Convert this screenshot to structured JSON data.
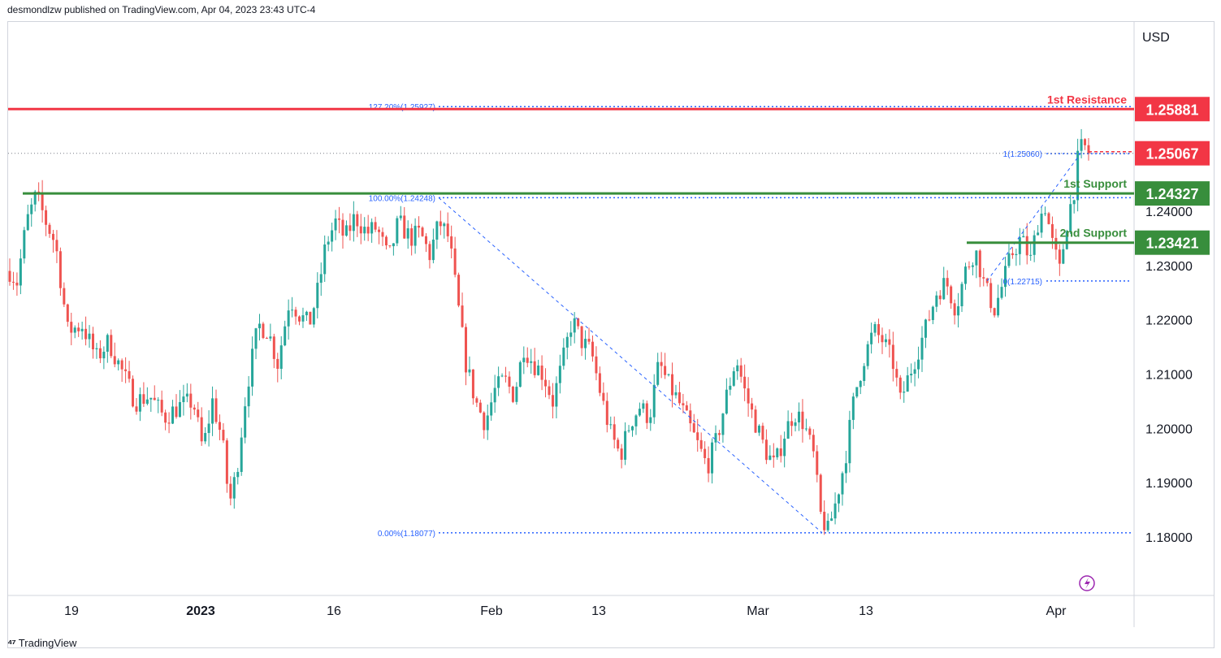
{
  "header": {
    "published_text": "desmondlzw published on TradingView.com, Apr 04, 2023 23:43 UTC-4"
  },
  "footer": {
    "brand": "TradingView"
  },
  "colors": {
    "bull": "#26a69a",
    "bear": "#ef5350",
    "resistance": "#f23645",
    "support": "#388e3c",
    "fib": "#2962ff",
    "last_price": "#f23645"
  },
  "chart_data": {
    "type": "candlestick",
    "title": "",
    "currency_label": "USD",
    "ylim": [
      1.17,
      1.275
    ],
    "y_ticks": [
      "1.18000",
      "1.19000",
      "1.20000",
      "1.21000",
      "1.22000",
      "1.23000",
      "1.24000"
    ],
    "x_ticks": [
      "19",
      "2023",
      "16",
      "Feb",
      "13",
      "Mar",
      "13",
      "Apr"
    ],
    "price_labels": [
      {
        "name": "resistance",
        "value": 1.25881,
        "text": "1.25881"
      },
      {
        "name": "last-price",
        "value": 1.25067,
        "text": "1.25067"
      },
      {
        "name": "support-1",
        "value": 1.24327,
        "text": "1.24327"
      },
      {
        "name": "support-2",
        "value": 1.23421,
        "text": "1.23421"
      }
    ],
    "level_lines": [
      {
        "name": "1st Resistance",
        "value": 1.25881
      },
      {
        "name": "1st Support",
        "value": 1.24327
      },
      {
        "name": "2nd Support",
        "value": 1.23421
      }
    ],
    "fib_levels_main": [
      {
        "label": "127.20%(1.25927)",
        "value": 1.25927
      },
      {
        "label": "100.00%(1.24248)",
        "value": 1.24248
      },
      {
        "label": "0.00%(1.18077)",
        "value": 1.18077
      }
    ],
    "fib_levels_small": [
      {
        "label": "1(1.25060)",
        "value": 1.2506
      },
      {
        "label": "0(1.22715)",
        "value": 1.22715
      }
    ],
    "path_points": [
      [
        0,
        1.229
      ],
      [
        6,
        1.227
      ],
      [
        14,
        1.238
      ],
      [
        22,
        1.243
      ],
      [
        30,
        1.238
      ],
      [
        38,
        1.234
      ],
      [
        48,
        1.218
      ],
      [
        60,
        1.219
      ],
      [
        72,
        1.213
      ],
      [
        82,
        1.216
      ],
      [
        92,
        1.211
      ],
      [
        104,
        1.205
      ],
      [
        116,
        1.206
      ],
      [
        128,
        1.202
      ],
      [
        140,
        1.204
      ],
      [
        152,
        1.205
      ],
      [
        160,
        1.196
      ],
      [
        168,
        1.205
      ],
      [
        176,
        1.198
      ],
      [
        182,
        1.186
      ],
      [
        188,
        1.192
      ],
      [
        196,
        1.207
      ],
      [
        206,
        1.219
      ],
      [
        214,
        1.218
      ],
      [
        222,
        1.212
      ],
      [
        232,
        1.224
      ],
      [
        240,
        1.221
      ],
      [
        248,
        1.219
      ],
      [
        256,
        1.226
      ],
      [
        262,
        1.234
      ],
      [
        270,
        1.238
      ],
      [
        278,
        1.235
      ],
      [
        286,
        1.239
      ],
      [
        296,
        1.236
      ],
      [
        304,
        1.237
      ],
      [
        314,
        1.231
      ],
      [
        322,
        1.238
      ],
      [
        332,
        1.235
      ],
      [
        340,
        1.236
      ],
      [
        348,
        1.232
      ],
      [
        356,
        1.238
      ],
      [
        364,
        1.235
      ],
      [
        370,
        1.225
      ],
      [
        378,
        1.212
      ],
      [
        386,
        1.205
      ],
      [
        394,
        1.201
      ],
      [
        402,
        1.207
      ],
      [
        410,
        1.209
      ],
      [
        418,
        1.206
      ],
      [
        426,
        1.215
      ],
      [
        434,
        1.212
      ],
      [
        442,
        1.21
      ],
      [
        450,
        1.205
      ],
      [
        458,
        1.212
      ],
      [
        466,
        1.22
      ],
      [
        474,
        1.216
      ],
      [
        482,
        1.214
      ],
      [
        490,
        1.206
      ],
      [
        498,
        1.199
      ],
      [
        506,
        1.195
      ],
      [
        514,
        1.201
      ],
      [
        522,
        1.204
      ],
      [
        530,
        1.202
      ],
      [
        538,
        1.212
      ],
      [
        546,
        1.208
      ],
      [
        554,
        1.205
      ],
      [
        562,
        1.201
      ],
      [
        570,
        1.197
      ],
      [
        578,
        1.193
      ],
      [
        586,
        1.198
      ],
      [
        594,
        1.206
      ],
      [
        602,
        1.213
      ],
      [
        610,
        1.206
      ],
      [
        618,
        1.201
      ],
      [
        626,
        1.196
      ],
      [
        634,
        1.193
      ],
      [
        642,
        1.199
      ],
      [
        650,
        1.203
      ],
      [
        658,
        1.201
      ],
      [
        666,
        1.195
      ],
      [
        672,
        1.184
      ],
      [
        678,
        1.181
      ],
      [
        684,
        1.186
      ],
      [
        692,
        1.194
      ],
      [
        700,
        1.206
      ],
      [
        708,
        1.213
      ],
      [
        716,
        1.218
      ],
      [
        724,
        1.216
      ],
      [
        732,
        1.212
      ],
      [
        738,
        1.205
      ],
      [
        744,
        1.209
      ],
      [
        752,
        1.214
      ],
      [
        760,
        1.219
      ],
      [
        768,
        1.225
      ],
      [
        776,
        1.227
      ],
      [
        784,
        1.222
      ],
      [
        792,
        1.229
      ],
      [
        800,
        1.233
      ],
      [
        808,
        1.226
      ],
      [
        816,
        1.222
      ],
      [
        822,
        1.226
      ],
      [
        830,
        1.232
      ],
      [
        838,
        1.235
      ],
      [
        846,
        1.231
      ],
      [
        852,
        1.238
      ],
      [
        858,
        1.241
      ],
      [
        864,
        1.234
      ],
      [
        870,
        1.229
      ],
      [
        876,
        1.238
      ],
      [
        882,
        1.244
      ],
      [
        886,
        1.251
      ],
      [
        890,
        1.252
      ],
      [
        894,
        1.2507
      ]
    ]
  }
}
